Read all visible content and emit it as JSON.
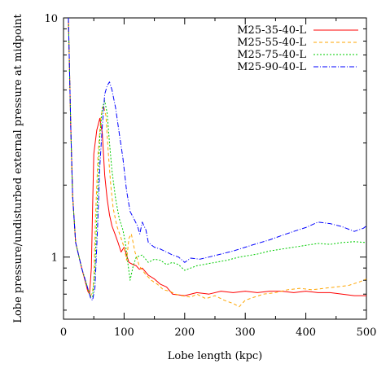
{
  "chart_data": {
    "type": "line",
    "title": "",
    "xlabel": "Lobe length (kpc)",
    "ylabel": "Lobe pressure/undisturbed external pressure at midpoint",
    "xlim": [
      0,
      500
    ],
    "ylim": [
      0.55,
      10
    ],
    "yscale": "log",
    "grid": false,
    "legend_position": "top-right",
    "x_ticks": [
      0,
      100,
      200,
      300,
      400,
      500
    ],
    "x_tick_labels": [
      "0",
      "100",
      "200",
      "300",
      "400",
      "500"
    ],
    "y_ticks": [
      1,
      10
    ],
    "y_tick_labels": [
      "1",
      "10"
    ],
    "series": [
      {
        "name": "M25-35-40-L",
        "color": "#ff0000",
        "dash": "solid",
        "points": [
          [
            8,
            10
          ],
          [
            12,
            3.5
          ],
          [
            15,
            1.8
          ],
          [
            20,
            1.15
          ],
          [
            30,
            0.9
          ],
          [
            40,
            0.72
          ],
          [
            43,
            0.7
          ],
          [
            46,
            0.9
          ],
          [
            48,
            1.6
          ],
          [
            50,
            2.7
          ],
          [
            55,
            3.4
          ],
          [
            60,
            3.8
          ],
          [
            64,
            3.3
          ],
          [
            68,
            2.2
          ],
          [
            72,
            1.75
          ],
          [
            76,
            1.5
          ],
          [
            80,
            1.35
          ],
          [
            85,
            1.25
          ],
          [
            90,
            1.15
          ],
          [
            95,
            1.05
          ],
          [
            100,
            1.1
          ],
          [
            104,
            1.02
          ],
          [
            108,
            0.95
          ],
          [
            115,
            0.93
          ],
          [
            120,
            0.92
          ],
          [
            125,
            0.89
          ],
          [
            130,
            0.9
          ],
          [
            140,
            0.84
          ],
          [
            150,
            0.81
          ],
          [
            160,
            0.77
          ],
          [
            170,
            0.75
          ],
          [
            180,
            0.7
          ],
          [
            200,
            0.69
          ],
          [
            220,
            0.71
          ],
          [
            240,
            0.7
          ],
          [
            260,
            0.72
          ],
          [
            280,
            0.71
          ],
          [
            300,
            0.72
          ],
          [
            320,
            0.71
          ],
          [
            340,
            0.72
          ],
          [
            360,
            0.72
          ],
          [
            380,
            0.71
          ],
          [
            400,
            0.72
          ],
          [
            420,
            0.71
          ],
          [
            440,
            0.71
          ],
          [
            460,
            0.7
          ],
          [
            480,
            0.69
          ],
          [
            500,
            0.69
          ]
        ]
      },
      {
        "name": "M25-55-40-L",
        "color": "#ffa500",
        "dash": "dashed",
        "points": [
          [
            8,
            10
          ],
          [
            12,
            3.5
          ],
          [
            15,
            1.8
          ],
          [
            20,
            1.15
          ],
          [
            30,
            0.9
          ],
          [
            40,
            0.73
          ],
          [
            45,
            0.69
          ],
          [
            48,
            0.72
          ],
          [
            50,
            0.8
          ],
          [
            53,
            1.5
          ],
          [
            57,
            2.7
          ],
          [
            62,
            3.9
          ],
          [
            66,
            4.3
          ],
          [
            70,
            3.9
          ],
          [
            74,
            2.7
          ],
          [
            78,
            2.0
          ],
          [
            82,
            1.6
          ],
          [
            88,
            1.35
          ],
          [
            95,
            1.2
          ],
          [
            100,
            1.1
          ],
          [
            104,
            0.97
          ],
          [
            108,
            1.2
          ],
          [
            112,
            1.25
          ],
          [
            118,
            1.05
          ],
          [
            125,
            0.92
          ],
          [
            135,
            0.85
          ],
          [
            145,
            0.8
          ],
          [
            155,
            0.77
          ],
          [
            165,
            0.73
          ],
          [
            175,
            0.72
          ],
          [
            185,
            0.7
          ],
          [
            195,
            0.69
          ],
          [
            210,
            0.68
          ],
          [
            220,
            0.7
          ],
          [
            235,
            0.67
          ],
          [
            250,
            0.69
          ],
          [
            265,
            0.66
          ],
          [
            280,
            0.64
          ],
          [
            290,
            0.62
          ],
          [
            300,
            0.66
          ],
          [
            315,
            0.68
          ],
          [
            330,
            0.7
          ],
          [
            350,
            0.71
          ],
          [
            370,
            0.73
          ],
          [
            390,
            0.74
          ],
          [
            410,
            0.73
          ],
          [
            430,
            0.74
          ],
          [
            450,
            0.75
          ],
          [
            470,
            0.76
          ],
          [
            490,
            0.79
          ],
          [
            500,
            0.81
          ]
        ]
      },
      {
        "name": "M25-75-40-L",
        "color": "#00cc00",
        "dash": "dotted",
        "points": [
          [
            8,
            10
          ],
          [
            12,
            3.5
          ],
          [
            15,
            1.8
          ],
          [
            20,
            1.15
          ],
          [
            30,
            0.9
          ],
          [
            40,
            0.74
          ],
          [
            45,
            0.68
          ],
          [
            48,
            0.68
          ],
          [
            52,
            0.9
          ],
          [
            56,
            1.8
          ],
          [
            60,
            3.2
          ],
          [
            64,
            4.2
          ],
          [
            68,
            4.5
          ],
          [
            72,
            4.0
          ],
          [
            76,
            3.0
          ],
          [
            80,
            2.3
          ],
          [
            86,
            1.75
          ],
          [
            92,
            1.45
          ],
          [
            98,
            1.3
          ],
          [
            102,
            1.15
          ],
          [
            106,
            0.95
          ],
          [
            110,
            0.8
          ],
          [
            115,
            0.92
          ],
          [
            120,
            1.0
          ],
          [
            130,
            1.02
          ],
          [
            140,
            0.95
          ],
          [
            150,
            0.98
          ],
          [
            160,
            0.97
          ],
          [
            170,
            0.93
          ],
          [
            180,
            0.95
          ],
          [
            190,
            0.93
          ],
          [
            200,
            0.88
          ],
          [
            210,
            0.9
          ],
          [
            220,
            0.92
          ],
          [
            230,
            0.93
          ],
          [
            250,
            0.95
          ],
          [
            270,
            0.97
          ],
          [
            290,
            1.0
          ],
          [
            300,
            1.01
          ],
          [
            320,
            1.03
          ],
          [
            340,
            1.06
          ],
          [
            360,
            1.08
          ],
          [
            380,
            1.1
          ],
          [
            400,
            1.12
          ],
          [
            420,
            1.14
          ],
          [
            440,
            1.13
          ],
          [
            460,
            1.15
          ],
          [
            480,
            1.16
          ],
          [
            500,
            1.15
          ]
        ]
      },
      {
        "name": "M25-90-40-L",
        "color": "#0000ff",
        "dash": "dashdot",
        "points": [
          [
            8,
            10
          ],
          [
            12,
            3.5
          ],
          [
            15,
            1.8
          ],
          [
            20,
            1.15
          ],
          [
            30,
            0.9
          ],
          [
            40,
            0.74
          ],
          [
            45,
            0.67
          ],
          [
            48,
            0.66
          ],
          [
            52,
            0.75
          ],
          [
            56,
            1.3
          ],
          [
            60,
            2.4
          ],
          [
            64,
            3.5
          ],
          [
            68,
            4.8
          ],
          [
            72,
            5.2
          ],
          [
            76,
            5.4
          ],
          [
            80,
            5.0
          ],
          [
            86,
            4.2
          ],
          [
            92,
            3.3
          ],
          [
            98,
            2.6
          ],
          [
            104,
            1.9
          ],
          [
            110,
            1.55
          ],
          [
            116,
            1.45
          ],
          [
            122,
            1.35
          ],
          [
            126,
            1.25
          ],
          [
            130,
            1.4
          ],
          [
            136,
            1.3
          ],
          [
            140,
            1.15
          ],
          [
            150,
            1.1
          ],
          [
            160,
            1.08
          ],
          [
            170,
            1.05
          ],
          [
            180,
            1.02
          ],
          [
            190,
            1.0
          ],
          [
            200,
            0.95
          ],
          [
            210,
            0.99
          ],
          [
            225,
            0.98
          ],
          [
            240,
            1.0
          ],
          [
            260,
            1.03
          ],
          [
            280,
            1.06
          ],
          [
            300,
            1.1
          ],
          [
            320,
            1.14
          ],
          [
            340,
            1.18
          ],
          [
            360,
            1.23
          ],
          [
            380,
            1.28
          ],
          [
            400,
            1.33
          ],
          [
            420,
            1.4
          ],
          [
            440,
            1.38
          ],
          [
            460,
            1.34
          ],
          [
            480,
            1.28
          ],
          [
            495,
            1.32
          ],
          [
            500,
            1.35
          ]
        ]
      }
    ]
  }
}
